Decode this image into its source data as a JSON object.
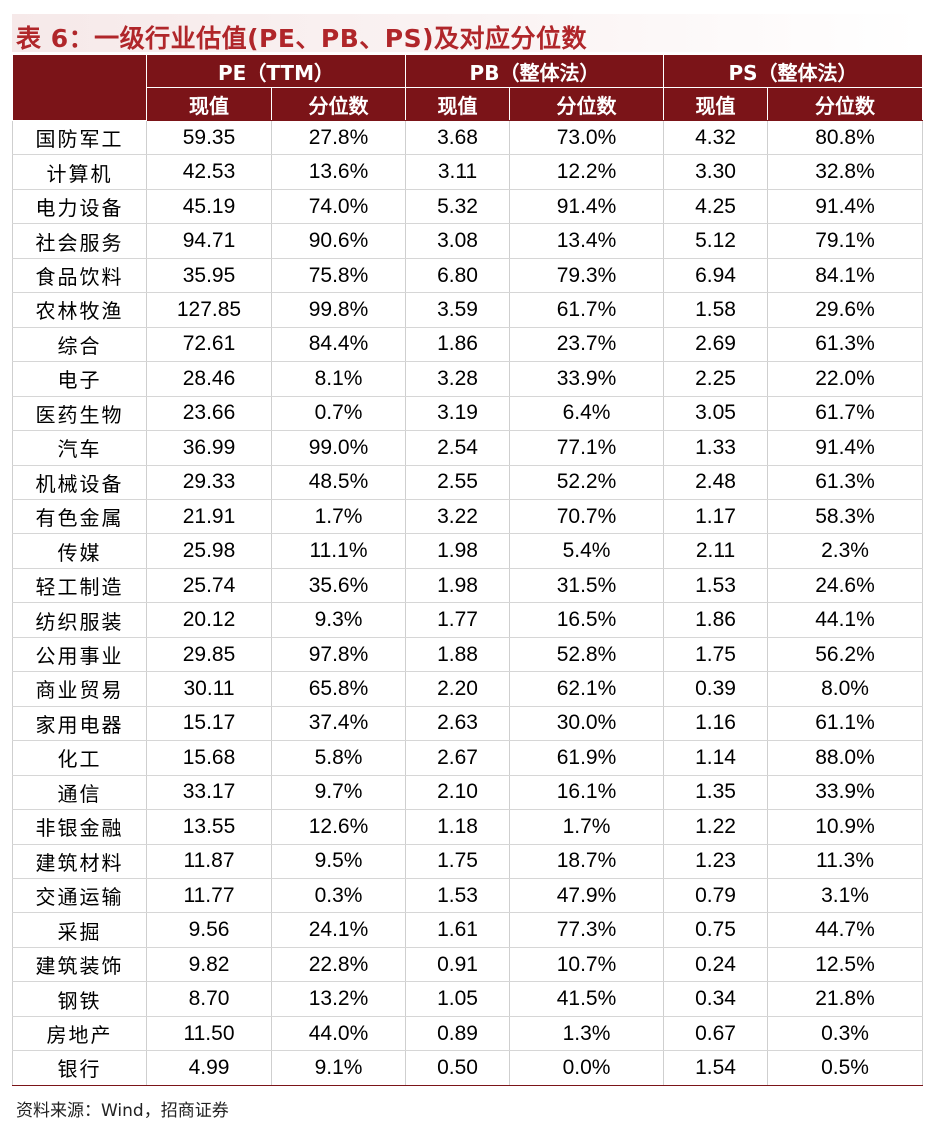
{
  "title": "表 6：一级行业估值(PE、PB、PS)及对应分位数",
  "headers": {
    "groups": [
      "PE（TTM）",
      "PB（整体法）",
      "PS（整体法）"
    ],
    "sub": [
      "现值",
      "分位数",
      "现值",
      "分位数",
      "现值",
      "分位数"
    ]
  },
  "rows": [
    {
      "industry": "国防军工",
      "pe": "59.35",
      "pe_pct": "27.8%",
      "pb": "3.68",
      "pb_pct": "73.0%",
      "ps": "4.32",
      "ps_pct": "80.8%"
    },
    {
      "industry": "计算机",
      "pe": "42.53",
      "pe_pct": "13.6%",
      "pb": "3.11",
      "pb_pct": "12.2%",
      "ps": "3.30",
      "ps_pct": "32.8%"
    },
    {
      "industry": "电力设备",
      "pe": "45.19",
      "pe_pct": "74.0%",
      "pb": "5.32",
      "pb_pct": "91.4%",
      "ps": "4.25",
      "ps_pct": "91.4%"
    },
    {
      "industry": "社会服务",
      "pe": "94.71",
      "pe_pct": "90.6%",
      "pb": "3.08",
      "pb_pct": "13.4%",
      "ps": "5.12",
      "ps_pct": "79.1%"
    },
    {
      "industry": "食品饮料",
      "pe": "35.95",
      "pe_pct": "75.8%",
      "pb": "6.80",
      "pb_pct": "79.3%",
      "ps": "6.94",
      "ps_pct": "84.1%"
    },
    {
      "industry": "农林牧渔",
      "pe": "127.85",
      "pe_pct": "99.8%",
      "pb": "3.59",
      "pb_pct": "61.7%",
      "ps": "1.58",
      "ps_pct": "29.6%"
    },
    {
      "industry": "综合",
      "pe": "72.61",
      "pe_pct": "84.4%",
      "pb": "1.86",
      "pb_pct": "23.7%",
      "ps": "2.69",
      "ps_pct": "61.3%"
    },
    {
      "industry": "电子",
      "pe": "28.46",
      "pe_pct": "8.1%",
      "pb": "3.28",
      "pb_pct": "33.9%",
      "ps": "2.25",
      "ps_pct": "22.0%"
    },
    {
      "industry": "医药生物",
      "pe": "23.66",
      "pe_pct": "0.7%",
      "pb": "3.19",
      "pb_pct": "6.4%",
      "ps": "3.05",
      "ps_pct": "61.7%"
    },
    {
      "industry": "汽车",
      "pe": "36.99",
      "pe_pct": "99.0%",
      "pb": "2.54",
      "pb_pct": "77.1%",
      "ps": "1.33",
      "ps_pct": "91.4%"
    },
    {
      "industry": "机械设备",
      "pe": "29.33",
      "pe_pct": "48.5%",
      "pb": "2.55",
      "pb_pct": "52.2%",
      "ps": "2.48",
      "ps_pct": "61.3%"
    },
    {
      "industry": "有色金属",
      "pe": "21.91",
      "pe_pct": "1.7%",
      "pb": "3.22",
      "pb_pct": "70.7%",
      "ps": "1.17",
      "ps_pct": "58.3%"
    },
    {
      "industry": "传媒",
      "pe": "25.98",
      "pe_pct": "11.1%",
      "pb": "1.98",
      "pb_pct": "5.4%",
      "ps": "2.11",
      "ps_pct": "2.3%"
    },
    {
      "industry": "轻工制造",
      "pe": "25.74",
      "pe_pct": "35.6%",
      "pb": "1.98",
      "pb_pct": "31.5%",
      "ps": "1.53",
      "ps_pct": "24.6%"
    },
    {
      "industry": "纺织服装",
      "pe": "20.12",
      "pe_pct": "9.3%",
      "pb": "1.77",
      "pb_pct": "16.5%",
      "ps": "1.86",
      "ps_pct": "44.1%"
    },
    {
      "industry": "公用事业",
      "pe": "29.85",
      "pe_pct": "97.8%",
      "pb": "1.88",
      "pb_pct": "52.8%",
      "ps": "1.75",
      "ps_pct": "56.2%"
    },
    {
      "industry": "商业贸易",
      "pe": "30.11",
      "pe_pct": "65.8%",
      "pb": "2.20",
      "pb_pct": "62.1%",
      "ps": "0.39",
      "ps_pct": "8.0%"
    },
    {
      "industry": "家用电器",
      "pe": "15.17",
      "pe_pct": "37.4%",
      "pb": "2.63",
      "pb_pct": "30.0%",
      "ps": "1.16",
      "ps_pct": "61.1%"
    },
    {
      "industry": "化工",
      "pe": "15.68",
      "pe_pct": "5.8%",
      "pb": "2.67",
      "pb_pct": "61.9%",
      "ps": "1.14",
      "ps_pct": "88.0%"
    },
    {
      "industry": "通信",
      "pe": "33.17",
      "pe_pct": "9.7%",
      "pb": "2.10",
      "pb_pct": "16.1%",
      "ps": "1.35",
      "ps_pct": "33.9%"
    },
    {
      "industry": "非银金融",
      "pe": "13.55",
      "pe_pct": "12.6%",
      "pb": "1.18",
      "pb_pct": "1.7%",
      "ps": "1.22",
      "ps_pct": "10.9%"
    },
    {
      "industry": "建筑材料",
      "pe": "11.87",
      "pe_pct": "9.5%",
      "pb": "1.75",
      "pb_pct": "18.7%",
      "ps": "1.23",
      "ps_pct": "11.3%"
    },
    {
      "industry": "交通运输",
      "pe": "11.77",
      "pe_pct": "0.3%",
      "pb": "1.53",
      "pb_pct": "47.9%",
      "ps": "0.79",
      "ps_pct": "3.1%"
    },
    {
      "industry": "采掘",
      "pe": "9.56",
      "pe_pct": "24.1%",
      "pb": "1.61",
      "pb_pct": "77.3%",
      "ps": "0.75",
      "ps_pct": "44.7%"
    },
    {
      "industry": "建筑装饰",
      "pe": "9.82",
      "pe_pct": "22.8%",
      "pb": "0.91",
      "pb_pct": "10.7%",
      "ps": "0.24",
      "ps_pct": "12.5%"
    },
    {
      "industry": "钢铁",
      "pe": "8.70",
      "pe_pct": "13.2%",
      "pb": "1.05",
      "pb_pct": "41.5%",
      "ps": "0.34",
      "ps_pct": "21.8%"
    },
    {
      "industry": "房地产",
      "pe": "11.50",
      "pe_pct": "44.0%",
      "pb": "0.89",
      "pb_pct": "1.3%",
      "ps": "0.67",
      "ps_pct": "0.3%"
    },
    {
      "industry": "银行",
      "pe": "4.99",
      "pe_pct": "9.1%",
      "pb": "0.50",
      "pb_pct": "0.0%",
      "ps": "1.54",
      "ps_pct": "0.5%"
    }
  ],
  "source": "资料来源：Wind，招商证券",
  "colors": {
    "header_bg": "#7b1418",
    "title": "#b0262a"
  }
}
